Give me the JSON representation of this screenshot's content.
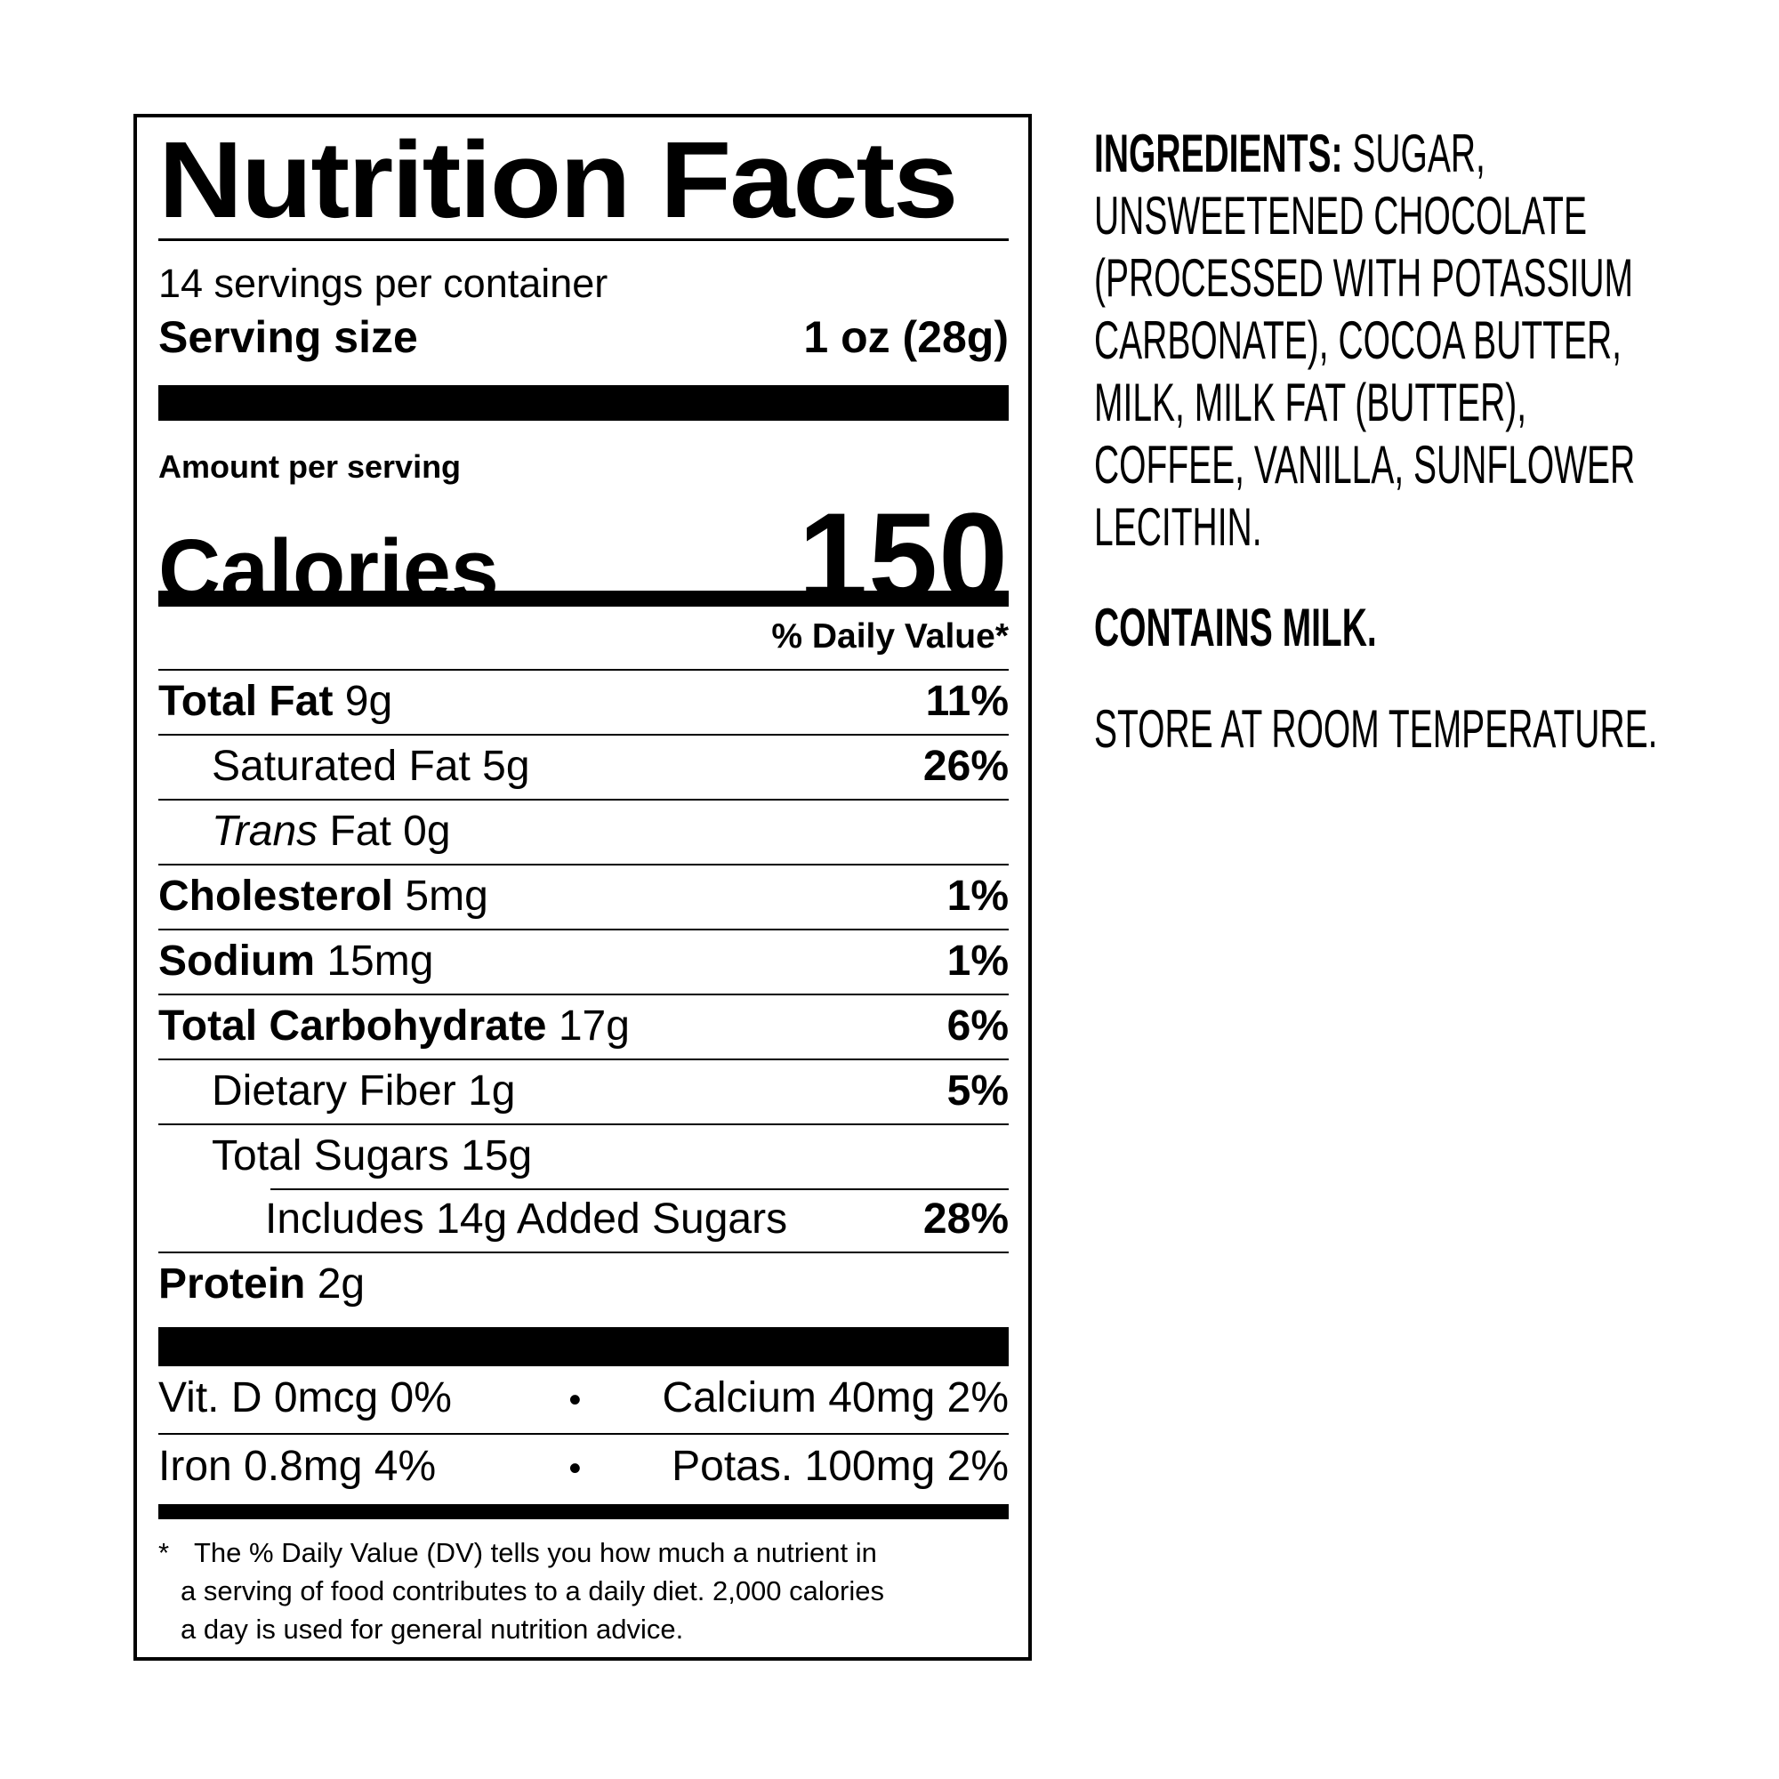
{
  "nutrition_panel": {
    "title": "Nutrition Facts",
    "servings_per_container": "14 servings per container",
    "serving_size": {
      "label": "Serving size",
      "value": "1 oz (28g)"
    },
    "amount_per_serving": "Amount per serving",
    "calories": {
      "label": "Calories",
      "value": "150"
    },
    "daily_value_header": "% Daily Value*",
    "rows": [
      {
        "bold": "Total Fat",
        "italic": "",
        "rest": " 9g",
        "dv": "11%"
      },
      {
        "bold": "",
        "italic": "",
        "rest": "Saturated Fat 5g",
        "dv": "26%"
      },
      {
        "bold": "",
        "italic": "Trans",
        "rest": " Fat 0g",
        "dv": ""
      },
      {
        "bold": "Cholesterol",
        "italic": "",
        "rest": " 5mg",
        "dv": "1%"
      },
      {
        "bold": "Sodium",
        "italic": "",
        "rest": " 15mg",
        "dv": "1%"
      },
      {
        "bold": "Total Carbohydrate",
        "italic": "",
        "rest": " 17g",
        "dv": "6%"
      },
      {
        "bold": "",
        "italic": "",
        "rest": "Dietary Fiber 1g",
        "dv": "5%"
      },
      {
        "bold": "",
        "italic": "",
        "rest": "Total Sugars 15g",
        "dv": ""
      },
      {
        "bold": "",
        "italic": "",
        "rest": "Includes 14g Added Sugars",
        "dv": "28%"
      },
      {
        "bold": "Protein",
        "italic": "",
        "rest": " 2g",
        "dv": ""
      }
    ],
    "micronutrients": [
      {
        "left": "Vit. D 0mcg 0%",
        "separator": "•",
        "right": "Calcium 40mg 2%"
      },
      {
        "left": "Iron 0.8mg 4%",
        "separator": "•",
        "right": "Potas. 100mg 2%"
      }
    ],
    "footnote": {
      "asterisk": "*",
      "line1": "The % Daily Value (DV) tells you how much a nutrient in",
      "line2": "a serving of food contributes to a daily diet. 2,000 calories",
      "line3": "a day is used for general nutrition advice."
    }
  },
  "ingredients_panel": {
    "heading": "INGREDIENTS:",
    "line1_rest": " SUGAR,",
    "lines": [
      "UNSWEETENED CHOCOLATE",
      "(PROCESSED WITH POTASSIUM",
      "CARBONATE), COCOA BUTTER,",
      "MILK, MILK FAT (BUTTER),",
      "COFFEE, VANILLA, SUNFLOWER",
      "LECITHIN."
    ],
    "contains": "CONTAINS MILK.",
    "storage": "STORE AT ROOM TEMPERATURE."
  }
}
